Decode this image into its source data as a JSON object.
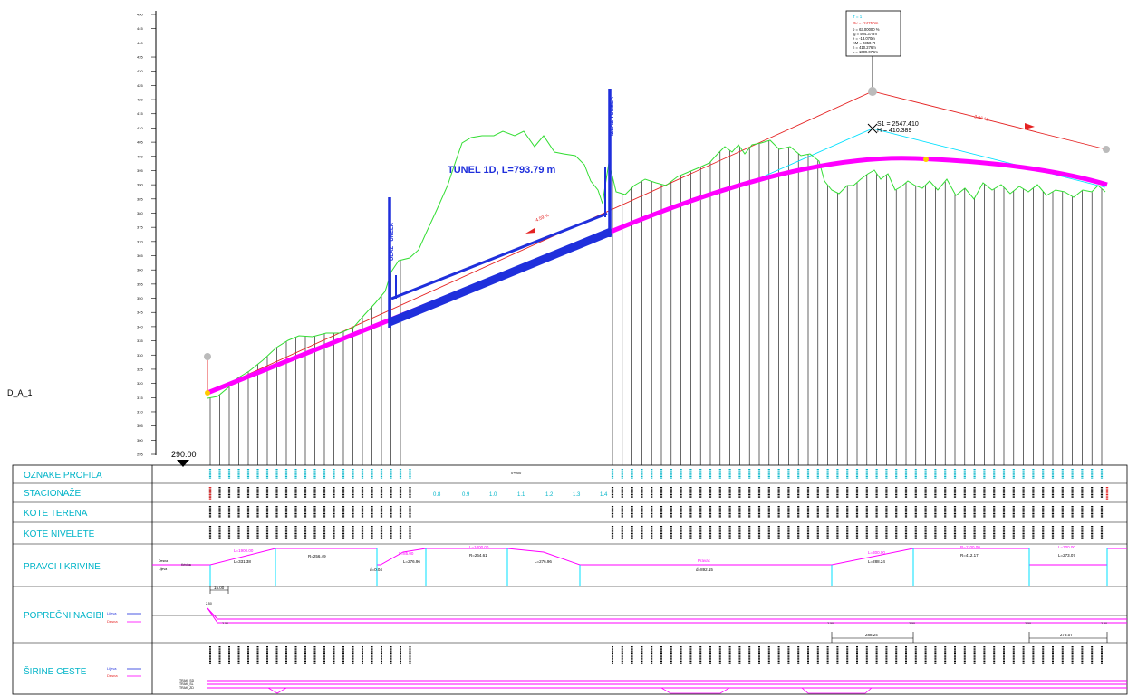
{
  "profile_label": "D_A_1",
  "datum_label": "290.00",
  "y_axis": {
    "min": 295,
    "max": 450,
    "step": 5,
    "labels": [
      "295",
      "300",
      "305",
      "310",
      "315",
      "320",
      "325",
      "330",
      "335",
      "340",
      "345",
      "350",
      "355",
      "360",
      "365",
      "370",
      "375",
      "380",
      "385",
      "390",
      "395",
      "400",
      "405",
      "410",
      "415",
      "420",
      "425",
      "430",
      "435",
      "440",
      "445",
      "450"
    ]
  },
  "tunnel_label": "TUNEL 1D, L=793.79 m",
  "portal_left_label": "ULAZ TUNELA",
  "portal_right_label": "IZLAZ TUNELA",
  "slope_labels": [
    "4.59 %",
    "2.96 %"
  ],
  "vertex_label_1": "S1 = 2547.410",
  "vertex_label_2": "H = 410.389",
  "curve_box": {
    "title": "T = 1",
    "red_line": "Rv = -24750m",
    "lines": [
      "p = 63.00000 %",
      "Ig = 504.375m",
      "e = -13.070m",
      "KM = 2350.7t",
      "h = 410.276m",
      "L = 1009.078m"
    ]
  },
  "rows": {
    "oznake_profila": "OZNAKE PROFILA",
    "stacionaze": "STACIONAŽE",
    "kote_terena": "KOTE TERENA",
    "kote_nivelete": "KOTE NIVELETE",
    "pravci_i_krivine": "PRAVCI I KRIVINE",
    "poprecni_nagibi": "POPREČNI NAGIBI",
    "sirine_ceste": "ŠIRINE CESTE"
  },
  "stationing_km": [
    "0.8",
    "0.9",
    "1.0",
    "1.1",
    "1.2",
    "1.3",
    "1.4"
  ],
  "curves": [
    {
      "label1": "L=1900.00",
      "label2": "L=331.38",
      "label3": "R=256.49"
    },
    {
      "label1": "L=85.00",
      "label2": "L=276.96",
      "label3": "d=0.04"
    },
    {
      "label1": "L=1000.00",
      "label2": "R=264.61",
      "label3": "L=276.96"
    },
    {
      "label1": "Pravac",
      "label2": "d=892.15",
      "label3": ""
    },
    {
      "label1": "L=300.00",
      "label2": "L=288.24",
      "label3": ""
    },
    {
      "label1": "R=1100.00",
      "label2": "R=412.17",
      "label3": ""
    },
    {
      "label1": "L=300.00",
      "label2": "L=273.07",
      "label3": ""
    }
  ],
  "curve_row_left": [
    "Desna",
    "Lijeva",
    "Krivina"
  ],
  "crossfall_values": [
    "2.50",
    "-2.50",
    "-2.50",
    "-2.50",
    "-2.50",
    "-2.50"
  ],
  "crossfall_legend": [
    "Lijeva",
    "Desna"
  ],
  "width_legend": [
    "Lijeva",
    "Desna"
  ],
  "dims": [
    "15.00",
    "288.24",
    "273.07"
  ],
  "lane_labels": [
    "TRAK_SD",
    "TRAK_SL",
    "TRAK_ZD"
  ],
  "mid_marker": "0+000",
  "colors": {
    "terrain": "#33dd33",
    "grade_line": "#ff00ff",
    "tunnel": "#1f2fdc",
    "tangent": "#e52222",
    "chord": "#00e0ff",
    "table_text": "#00b4c8"
  }
}
